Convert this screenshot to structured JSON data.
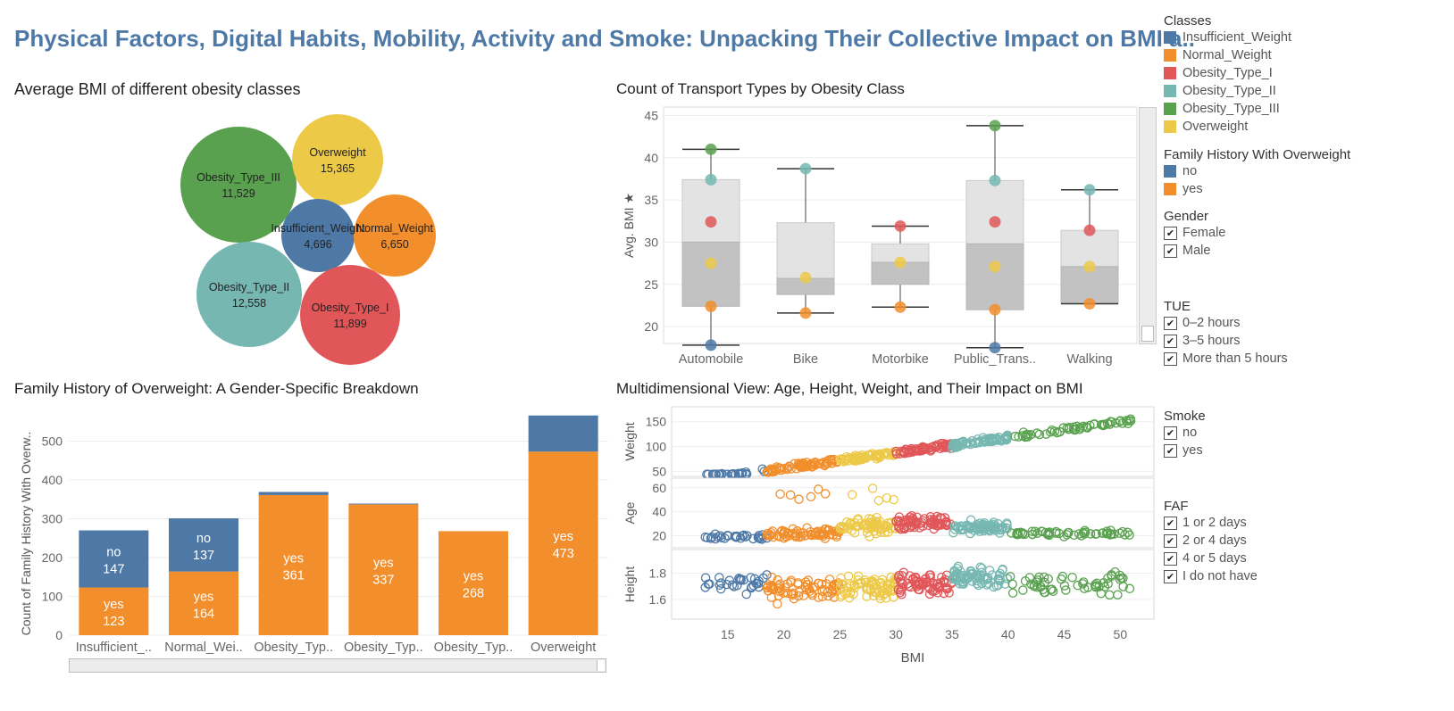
{
  "title": "Physical Factors, Digital Habits, Mobility, Activity and Smoke: Unpacking Their Collective Impact on BMI a..",
  "colors": {
    "Insufficient_Weight": "#4e79a7",
    "Normal_Weight": "#f28e2b",
    "Obesity_Type_I": "#e15759",
    "Obesity_Type_II": "#76b7b2",
    "Obesity_Type_III": "#59a14f",
    "Overweight": "#edc948"
  },
  "bubble_chart": {
    "title": "Average BMI  of different obesity classes",
    "chart_data": {
      "type": "bubble",
      "items": [
        {
          "name": "Obesity_Type_III",
          "value_label": "11,529",
          "value": 11529
        },
        {
          "name": "Overweight",
          "value_label": "15,365",
          "value": 15365
        },
        {
          "name": "Insufficient_Weight",
          "value_label": "4,696",
          "value": 4696
        },
        {
          "name": "Normal_Weight",
          "value_label": "6,650",
          "value": 6650
        },
        {
          "name": "Obesity_Type_II",
          "value_label": "12,558",
          "value": 12558
        },
        {
          "name": "Obesity_Type_I",
          "value_label": "11,899",
          "value": 11899
        }
      ]
    }
  },
  "box_chart": {
    "title": "Count of Transport Types by Obesity Class",
    "ylabel": "Avg. BMI",
    "chart_data": {
      "type": "box",
      "categories": [
        "Automobile",
        "Bike",
        "Motorbike",
        "Public_Trans..",
        "Walking"
      ],
      "ylim": [
        18,
        46
      ],
      "yticks": [
        20,
        25,
        30,
        35,
        40,
        45
      ],
      "boxes": [
        {
          "min": 17.8,
          "q1": 22.4,
          "median": 30.0,
          "q3": 37.4,
          "max": 41.0
        },
        {
          "min": 21.6,
          "q1": 23.8,
          "median": 25.7,
          "q3": 32.3,
          "max": 38.7
        },
        {
          "min": 22.3,
          "q1": 25.0,
          "median": 27.6,
          "q3": 29.8,
          "max": 31.9
        },
        {
          "min": 17.5,
          "q1": 22.0,
          "median": 29.8,
          "q3": 37.3,
          "max": 43.8
        },
        {
          "min": 22.7,
          "q1": 22.7,
          "median": 27.1,
          "q3": 31.4,
          "max": 36.2
        }
      ],
      "points": [
        {
          "x": "Automobile",
          "series": "Obesity_Type_III",
          "y": 41.0
        },
        {
          "x": "Automobile",
          "series": "Obesity_Type_II",
          "y": 37.4
        },
        {
          "x": "Automobile",
          "series": "Obesity_Type_I",
          "y": 32.4
        },
        {
          "x": "Automobile",
          "series": "Overweight",
          "y": 27.5
        },
        {
          "x": "Automobile",
          "series": "Normal_Weight",
          "y": 22.4
        },
        {
          "x": "Automobile",
          "series": "Insufficient_Weight",
          "y": 17.8
        },
        {
          "x": "Bike",
          "series": "Obesity_Type_II",
          "y": 38.7
        },
        {
          "x": "Bike",
          "series": "Overweight",
          "y": 25.8
        },
        {
          "x": "Bike",
          "series": "Normal_Weight",
          "y": 21.6
        },
        {
          "x": "Motorbike",
          "series": "Obesity_Type_I",
          "y": 31.9
        },
        {
          "x": "Motorbike",
          "series": "Overweight",
          "y": 27.6
        },
        {
          "x": "Motorbike",
          "series": "Normal_Weight",
          "y": 22.3
        },
        {
          "x": "Public_Trans..",
          "series": "Obesity_Type_III",
          "y": 43.8
        },
        {
          "x": "Public_Trans..",
          "series": "Obesity_Type_II",
          "y": 37.3
        },
        {
          "x": "Public_Trans..",
          "series": "Obesity_Type_I",
          "y": 32.4
        },
        {
          "x": "Public_Trans..",
          "series": "Overweight",
          "y": 27.1
        },
        {
          "x": "Public_Trans..",
          "series": "Normal_Weight",
          "y": 22.0
        },
        {
          "x": "Public_Trans..",
          "series": "Insufficient_Weight",
          "y": 17.5
        },
        {
          "x": "Walking",
          "series": "Obesity_Type_II",
          "y": 36.2
        },
        {
          "x": "Walking",
          "series": "Obesity_Type_I",
          "y": 31.4
        },
        {
          "x": "Walking",
          "series": "Overweight",
          "y": 27.1
        },
        {
          "x": "Walking",
          "series": "Normal_Weight",
          "y": 22.7
        }
      ]
    }
  },
  "stacked_chart": {
    "title": "Family History of Overweight: A Gender-Specific Breakdown",
    "ylabel": "Count of Family History With Overw..",
    "chart_data": {
      "type": "bar",
      "stacked": true,
      "categories": [
        "Insufficient_..",
        "Normal_Wei..",
        "Obesity_Typ..",
        "Obesity_Typ..",
        "Obesity_Typ..",
        "Overweight"
      ],
      "ylim": [
        0,
        570
      ],
      "yticks": [
        0,
        100,
        200,
        300,
        400,
        500
      ],
      "series": [
        {
          "name": "yes",
          "values": [
            123,
            164,
            361,
            337,
            268,
            473
          ],
          "show_labels": [
            true,
            true,
            true,
            true,
            true,
            true
          ]
        },
        {
          "name": "no",
          "values": [
            147,
            137,
            8,
            2,
            0,
            93
          ],
          "show_labels": [
            true,
            true,
            false,
            false,
            false,
            false
          ]
        }
      ]
    }
  },
  "scatter_chart": {
    "title": "Multidimensional View: Age, Height, Weight, and Their Impact on BMI",
    "xlabel": "BMI",
    "xlim": [
      10,
      53
    ],
    "xticks": [
      15,
      20,
      25,
      30,
      35,
      40,
      45,
      50
    ],
    "rows": [
      {
        "label": "Weight",
        "ylim": [
          40,
          180
        ],
        "yticks": [
          50,
          100,
          150
        ]
      },
      {
        "label": "Age",
        "ylim": [
          10,
          68
        ],
        "yticks": [
          20,
          40,
          60
        ]
      },
      {
        "label": "Height",
        "ylim": [
          1.45,
          1.98
        ],
        "yticks": [
          1.6,
          1.8
        ]
      }
    ],
    "bmi_ranges": [
      {
        "series": "Insufficient_Weight",
        "range": [
          13,
          18.5
        ]
      },
      {
        "series": "Normal_Weight",
        "range": [
          18.5,
          25
        ]
      },
      {
        "series": "Overweight",
        "range": [
          25,
          30
        ]
      },
      {
        "series": "Obesity_Type_I",
        "range": [
          30,
          35
        ]
      },
      {
        "series": "Obesity_Type_II",
        "range": [
          35,
          40
        ]
      },
      {
        "series": "Obesity_Type_III",
        "range": [
          40,
          51
        ]
      }
    ]
  },
  "legend": {
    "classes": {
      "title": "Classes",
      "items": [
        "Insufficient_Weight",
        "Normal_Weight",
        "Obesity_Type_I",
        "Obesity_Type_II",
        "Obesity_Type_III",
        "Overweight"
      ]
    },
    "family_history": {
      "title": "Family History With Overweight",
      "items": [
        {
          "label": "no",
          "color": "#4e79a7"
        },
        {
          "label": "yes",
          "color": "#f28e2b"
        }
      ]
    }
  },
  "filters": {
    "gender": {
      "title": "Gender",
      "items": [
        "Female",
        "Male"
      ]
    },
    "tue": {
      "title": "TUE",
      "items": [
        "0–2 hours",
        "3–5 hours",
        "More than 5 hours"
      ]
    },
    "smoke": {
      "title": "Smoke",
      "items": [
        "no",
        "yes"
      ]
    },
    "faf": {
      "title": "FAF",
      "items": [
        "1 or 2 days",
        "2 or 4 days",
        "4 or 5 days",
        "I do not have"
      ]
    }
  }
}
